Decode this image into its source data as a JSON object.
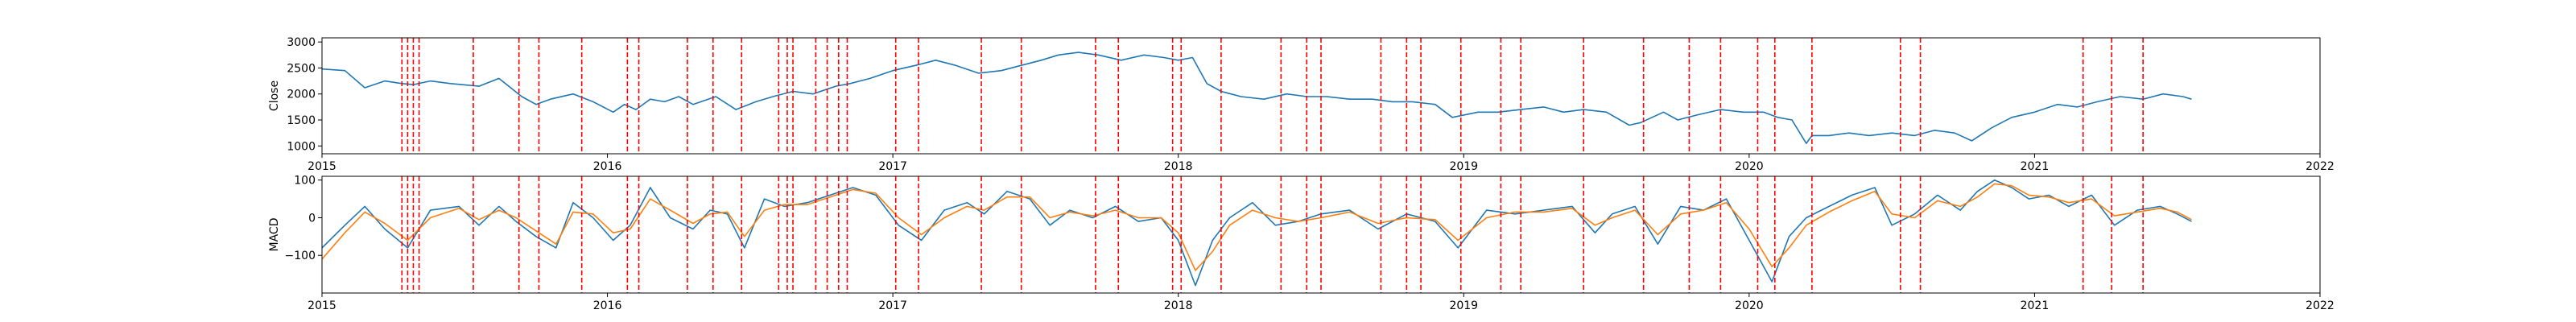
{
  "colors": {
    "close_line": "#1f77b4",
    "macd_line": "#1f77b4",
    "signal_line": "#ff7f0e",
    "event_line": "#ff0000",
    "axes": "#000000"
  },
  "chart_data": [
    {
      "type": "line",
      "ylabel": "Close",
      "xlim": [
        2015.0,
        2022.0
      ],
      "ylim": [
        850,
        3080
      ],
      "x_ticks": [
        2015,
        2016,
        2017,
        2018,
        2019,
        2020,
        2021,
        2022
      ],
      "x_tick_labels": [
        "2015",
        "2016",
        "2017",
        "2018",
        "2019",
        "2020",
        "2021",
        "2022"
      ],
      "y_ticks": [
        1000,
        1500,
        2000,
        2500,
        3000
      ],
      "y_tick_labels": [
        "1000",
        "1500",
        "2000",
        "2500",
        "3000"
      ],
      "grid": false,
      "series": [
        {
          "x": [
            2015.0,
            2015.08,
            2015.15,
            2015.22,
            2015.28,
            2015.32,
            2015.38,
            2015.45,
            2015.55,
            2015.62,
            2015.7,
            2015.75,
            2015.8,
            2015.88,
            2015.95,
            2016.02,
            2016.06,
            2016.1,
            2016.15,
            2016.2,
            2016.25,
            2016.3,
            2016.38,
            2016.45,
            2016.52,
            2016.58,
            2016.65,
            2016.72,
            2016.8,
            2016.85,
            2016.92,
            2017.0,
            2017.08,
            2017.15,
            2017.22,
            2017.3,
            2017.38,
            2017.45,
            2017.52,
            2017.58,
            2017.65,
            2017.72,
            2017.8,
            2017.88,
            2017.95,
            2018.0,
            2018.05,
            2018.1,
            2018.15,
            2018.22,
            2018.3,
            2018.38,
            2018.45,
            2018.52,
            2018.6,
            2018.68,
            2018.75,
            2018.82,
            2018.9,
            2018.96,
            2019.05,
            2019.12,
            2019.2,
            2019.28,
            2019.35,
            2019.42,
            2019.5,
            2019.58,
            2019.62,
            2019.7,
            2019.75,
            2019.82,
            2019.9,
            2019.98,
            2020.05,
            2020.1,
            2020.15,
            2020.2,
            2020.22,
            2020.28,
            2020.35,
            2020.42,
            2020.5,
            2020.58,
            2020.65,
            2020.72,
            2020.78,
            2020.85,
            2020.92,
            2021.0,
            2021.08,
            2021.15,
            2021.22,
            2021.3,
            2021.38,
            2021.45,
            2021.52,
            2021.55
          ],
          "y": [
            2480,
            2450,
            2120,
            2250,
            2200,
            2180,
            2250,
            2200,
            2150,
            2300,
            1950,
            1800,
            1900,
            2000,
            1850,
            1650,
            1800,
            1700,
            1900,
            1850,
            1950,
            1800,
            1950,
            1700,
            1850,
            1950,
            2050,
            2000,
            2150,
            2200,
            2300,
            2450,
            2550,
            2650,
            2550,
            2400,
            2450,
            2550,
            2650,
            2750,
            2800,
            2750,
            2650,
            2750,
            2700,
            2650,
            2700,
            2200,
            2050,
            1950,
            1900,
            2000,
            1950,
            1950,
            1900,
            1900,
            1850,
            1850,
            1800,
            1550,
            1650,
            1650,
            1700,
            1750,
            1650,
            1700,
            1650,
            1400,
            1450,
            1650,
            1500,
            1600,
            1700,
            1650,
            1650,
            1550,
            1500,
            1050,
            1200,
            1200,
            1250,
            1200,
            1250,
            1200,
            1300,
            1250,
            1100,
            1350,
            1550,
            1650,
            1800,
            1750,
            1850,
            1950,
            1900,
            2000,
            1950,
            1900
          ]
        }
      ]
    },
    {
      "type": "line",
      "ylabel": "MACD",
      "xlim": [
        2015.0,
        2022.0
      ],
      "ylim": [
        -200,
        110
      ],
      "x_ticks": [
        2015,
        2016,
        2017,
        2018,
        2019,
        2020,
        2021,
        2022
      ],
      "x_tick_labels": [
        "2015",
        "2016",
        "2017",
        "2018",
        "2019",
        "2020",
        "2021",
        "2022"
      ],
      "y_ticks": [
        -100,
        0,
        100
      ],
      "y_tick_labels": [
        "−100",
        "0",
        "100"
      ],
      "grid": false,
      "series": [
        {
          "x": [
            2015.0,
            2015.08,
            2015.15,
            2015.22,
            2015.3,
            2015.38,
            2015.48,
            2015.55,
            2015.62,
            2015.68,
            2015.75,
            2015.82,
            2015.88,
            2015.95,
            2016.02,
            2016.08,
            2016.15,
            2016.22,
            2016.3,
            2016.36,
            2016.42,
            2016.48,
            2016.55,
            2016.62,
            2016.7,
            2016.78,
            2016.86,
            2016.94,
            2017.02,
            2017.1,
            2017.18,
            2017.26,
            2017.32,
            2017.4,
            2017.48,
            2017.55,
            2017.62,
            2017.7,
            2017.78,
            2017.86,
            2017.94,
            2018.0,
            2018.06,
            2018.12,
            2018.18,
            2018.26,
            2018.34,
            2018.42,
            2018.5,
            2018.6,
            2018.7,
            2018.8,
            2018.9,
            2018.98,
            2019.08,
            2019.18,
            2019.28,
            2019.38,
            2019.46,
            2019.52,
            2019.6,
            2019.68,
            2019.76,
            2019.84,
            2019.92,
            2020.0,
            2020.08,
            2020.14,
            2020.2,
            2020.28,
            2020.36,
            2020.44,
            2020.5,
            2020.58,
            2020.66,
            2020.74,
            2020.8,
            2020.86,
            2020.92,
            2020.98,
            2021.05,
            2021.12,
            2021.2,
            2021.28,
            2021.36,
            2021.44,
            2021.5,
            2021.55
          ],
          "y": [
            -80,
            -20,
            30,
            -30,
            -80,
            20,
            30,
            -20,
            30,
            -10,
            -50,
            -80,
            40,
            0,
            -60,
            -20,
            80,
            0,
            -30,
            20,
            10,
            -80,
            50,
            30,
            40,
            60,
            80,
            60,
            -20,
            -60,
            20,
            40,
            10,
            70,
            50,
            -20,
            20,
            0,
            30,
            -10,
            0,
            -60,
            -180,
            -60,
            0,
            40,
            -20,
            -10,
            10,
            20,
            -30,
            10,
            -10,
            -80,
            20,
            10,
            20,
            30,
            -40,
            10,
            30,
            -70,
            30,
            20,
            50,
            -60,
            -170,
            -50,
            0,
            30,
            60,
            80,
            -20,
            10,
            60,
            20,
            70,
            100,
            80,
            50,
            60,
            30,
            60,
            -20,
            20,
            30,
            10,
            -10
          ]
        },
        {
          "x": [
            2015.0,
            2015.08,
            2015.15,
            2015.22,
            2015.3,
            2015.38,
            2015.48,
            2015.55,
            2015.62,
            2015.68,
            2015.75,
            2015.82,
            2015.88,
            2015.95,
            2016.02,
            2016.08,
            2016.15,
            2016.22,
            2016.3,
            2016.36,
            2016.42,
            2016.48,
            2016.55,
            2016.62,
            2016.7,
            2016.78,
            2016.86,
            2016.94,
            2017.02,
            2017.1,
            2017.18,
            2017.26,
            2017.32,
            2017.4,
            2017.48,
            2017.55,
            2017.62,
            2017.7,
            2017.78,
            2017.86,
            2017.94,
            2018.0,
            2018.06,
            2018.12,
            2018.18,
            2018.26,
            2018.34,
            2018.42,
            2018.5,
            2018.6,
            2018.7,
            2018.8,
            2018.9,
            2018.98,
            2019.08,
            2019.18,
            2019.28,
            2019.38,
            2019.46,
            2019.52,
            2019.6,
            2019.68,
            2019.76,
            2019.84,
            2019.92,
            2020.0,
            2020.08,
            2020.14,
            2020.2,
            2020.28,
            2020.36,
            2020.44,
            2020.5,
            2020.58,
            2020.66,
            2020.74,
            2020.8,
            2020.86,
            2020.92,
            2020.98,
            2021.05,
            2021.12,
            2021.2,
            2021.28,
            2021.36,
            2021.44,
            2021.5,
            2021.55
          ],
          "y": [
            -110,
            -40,
            15,
            -15,
            -60,
            0,
            25,
            -5,
            20,
            0,
            -35,
            -70,
            15,
            10,
            -40,
            -30,
            50,
            20,
            -15,
            10,
            15,
            -50,
            20,
            35,
            35,
            55,
            75,
            65,
            0,
            -45,
            0,
            30,
            20,
            55,
            55,
            0,
            15,
            5,
            20,
            0,
            0,
            -40,
            -140,
            -90,
            -20,
            20,
            0,
            -10,
            0,
            15,
            -15,
            0,
            -5,
            -60,
            0,
            15,
            15,
            25,
            -20,
            0,
            20,
            -45,
            10,
            20,
            40,
            -30,
            -130,
            -80,
            -20,
            15,
            45,
            70,
            10,
            0,
            45,
            30,
            55,
            90,
            85,
            60,
            55,
            40,
            50,
            5,
            15,
            25,
            15,
            -5
          ]
        }
      ]
    }
  ],
  "event_dates": [
    2015.28,
    2015.3,
    2015.32,
    2015.34,
    2015.53,
    2015.69,
    2015.76,
    2015.91,
    2016.07,
    2016.11,
    2016.28,
    2016.37,
    2016.47,
    2016.6,
    2016.63,
    2016.65,
    2016.73,
    2016.77,
    2016.81,
    2016.84,
    2017.01,
    2017.09,
    2017.31,
    2017.45,
    2017.71,
    2017.79,
    2017.98,
    2018.01,
    2018.15,
    2018.36,
    2018.45,
    2018.5,
    2018.71,
    2018.8,
    2018.85,
    2018.99,
    2019.13,
    2019.2,
    2019.42,
    2019.63,
    2019.79,
    2019.9,
    2020.03,
    2020.09,
    2020.22,
    2020.53,
    2020.6,
    2021.17,
    2021.27,
    2021.38
  ]
}
